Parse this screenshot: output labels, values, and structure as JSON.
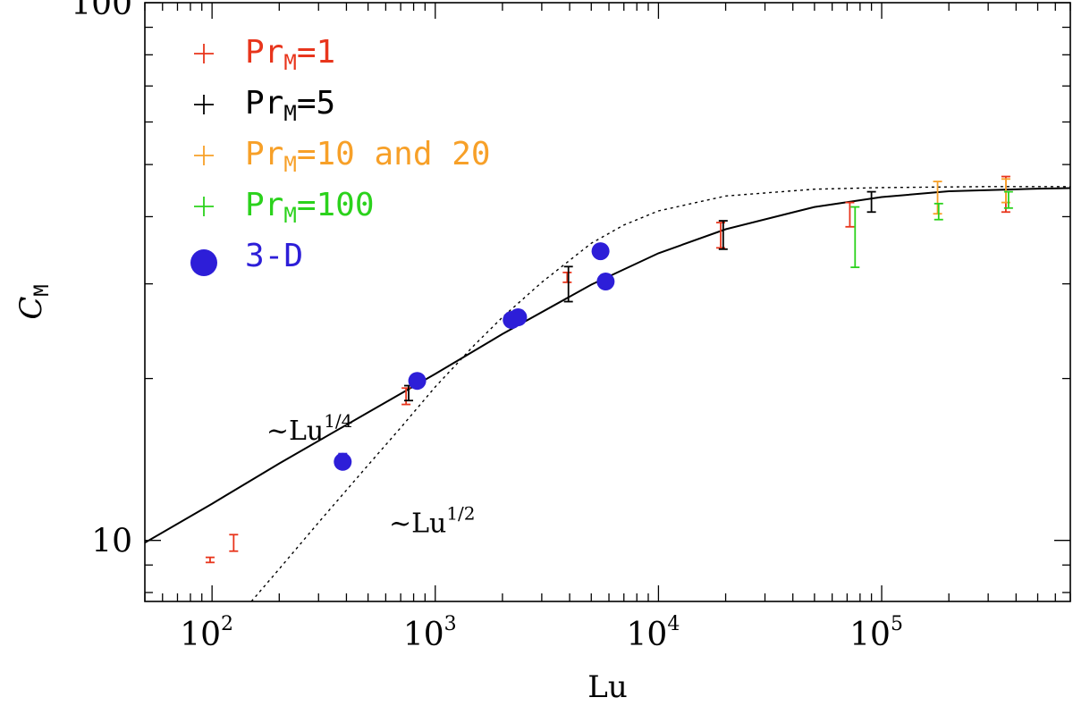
{
  "chart_data": {
    "type": "scatter",
    "xscale": "log",
    "yscale": "log",
    "xlim": [
      50,
      700000
    ],
    "ylim": [
      7.7,
      100
    ],
    "xlabel": "Lu",
    "ylabel": "C",
    "ylabel_sub": "M",
    "xticks": [
      {
        "value": 100,
        "base": "10",
        "exp": "2"
      },
      {
        "value": 1000,
        "base": "10",
        "exp": "3"
      },
      {
        "value": 10000,
        "base": "10",
        "exp": "4"
      },
      {
        "value": 100000,
        "base": "10",
        "exp": "5"
      }
    ],
    "yticks": [
      {
        "value": 10,
        "label": "10"
      },
      {
        "value": 100,
        "label": "100"
      }
    ],
    "legend_position": "top-left",
    "legend": [
      {
        "marker": "+",
        "color": "#e8351c",
        "text": "Pr",
        "sub": "M",
        "suffix": "=1"
      },
      {
        "marker": "+",
        "color": "#000000",
        "text": "Pr",
        "sub": "M",
        "suffix": "=5"
      },
      {
        "marker": "+",
        "color": "#f7a028",
        "text": "Pr",
        "sub": "M",
        "suffix": "=10 and 20"
      },
      {
        "marker": "+",
        "color": "#2bd21c",
        "text": "Pr",
        "sub": "M",
        "suffix": "=100"
      },
      {
        "marker": "dot",
        "color": "#2d1ed8",
        "text": "3-D",
        "sub": "",
        "suffix": ""
      }
    ],
    "annotations": [
      {
        "text": "~Lu",
        "sup": "1/4",
        "x": 175,
        "y": 15.4
      },
      {
        "text": "~Lu",
        "sup": "1/2",
        "x": 620,
        "y": 10.35
      }
    ],
    "series": [
      {
        "name": "Pr_M=1",
        "color": "#e8351c",
        "points": [
          {
            "x": 98,
            "y": 9.2,
            "lo": 9.1,
            "hi": 9.3
          },
          {
            "x": 125,
            "y": 9.9,
            "lo": 9.55,
            "hi": 10.25
          },
          {
            "x": 740,
            "y": 18.5,
            "lo": 17.9,
            "hi": 19.2
          },
          {
            "x": 3900,
            "y": 30.8,
            "lo": 30.2,
            "hi": 31.5
          },
          {
            "x": 19000,
            "y": 37.2,
            "lo": 35.0,
            "hi": 39.0
          },
          {
            "x": 72000,
            "y": 40.5,
            "lo": 38.3,
            "hi": 42.5
          },
          {
            "x": 360000,
            "y": 44.0,
            "lo": 40.8,
            "hi": 47.5
          }
        ]
      },
      {
        "name": "Pr_M=5",
        "color": "#000000",
        "points": [
          {
            "x": 760,
            "y": 18.8,
            "lo": 18.2,
            "hi": 19.4
          },
          {
            "x": 3950,
            "y": 30.2,
            "lo": 27.8,
            "hi": 32.3
          },
          {
            "x": 19500,
            "y": 37.0,
            "lo": 34.8,
            "hi": 39.3
          },
          {
            "x": 90000,
            "y": 42.5,
            "lo": 40.8,
            "hi": 44.5
          }
        ]
      },
      {
        "name": "Pr_M=10 and 20",
        "color": "#f7a028",
        "points": [
          {
            "x": 178000,
            "y": 43.8,
            "lo": 40.5,
            "hi": 46.5
          },
          {
            "x": 360000,
            "y": 45.0,
            "lo": 42.5,
            "hi": 47.0
          }
        ]
      },
      {
        "name": "Pr_M=100",
        "color": "#2bd21c",
        "points": [
          {
            "x": 76000,
            "y": 36.0,
            "lo": 32.2,
            "hi": 41.7
          },
          {
            "x": 180000,
            "y": 41.0,
            "lo": 39.5,
            "hi": 42.3
          },
          {
            "x": 370000,
            "y": 43.0,
            "lo": 41.5,
            "hi": 44.5
          }
        ]
      },
      {
        "name": "3-D",
        "color": "#2d1ed8",
        "marker": "dot",
        "points": [
          {
            "x": 385,
            "y": 14.0,
            "lo": 13.6,
            "hi": 14.5
          },
          {
            "x": 830,
            "y": 19.8
          },
          {
            "x": 2200,
            "y": 25.7
          },
          {
            "x": 2350,
            "y": 26.0
          },
          {
            "x": 5500,
            "y": 34.5
          },
          {
            "x": 5800,
            "y": 30.3
          }
        ]
      }
    ],
    "curves": [
      {
        "name": "solid fit",
        "style": "solid",
        "color": "#000000",
        "x": [
          50,
          100,
          200,
          500,
          1000,
          2000,
          5000,
          10000,
          20000,
          50000,
          100000,
          200000,
          500000,
          700000
        ],
        "y": [
          9.9,
          11.7,
          13.9,
          17.3,
          20.4,
          24.2,
          29.9,
          34.2,
          37.9,
          41.7,
          43.5,
          44.6,
          45.1,
          45.2
        ]
      },
      {
        "name": "dotted fit",
        "style": "dotted",
        "color": "#000000",
        "x": [
          150,
          200,
          300,
          500,
          700,
          1000,
          1500,
          2000,
          3000,
          5000,
          7000,
          10000,
          20000,
          50000,
          100000,
          300000,
          700000
        ],
        "y": [
          7.7,
          8.85,
          10.8,
          13.8,
          16.2,
          19.3,
          23.1,
          26.0,
          30.2,
          35.7,
          38.6,
          41.0,
          43.7,
          45.0,
          45.3,
          45.5,
          45.5
        ]
      }
    ]
  }
}
